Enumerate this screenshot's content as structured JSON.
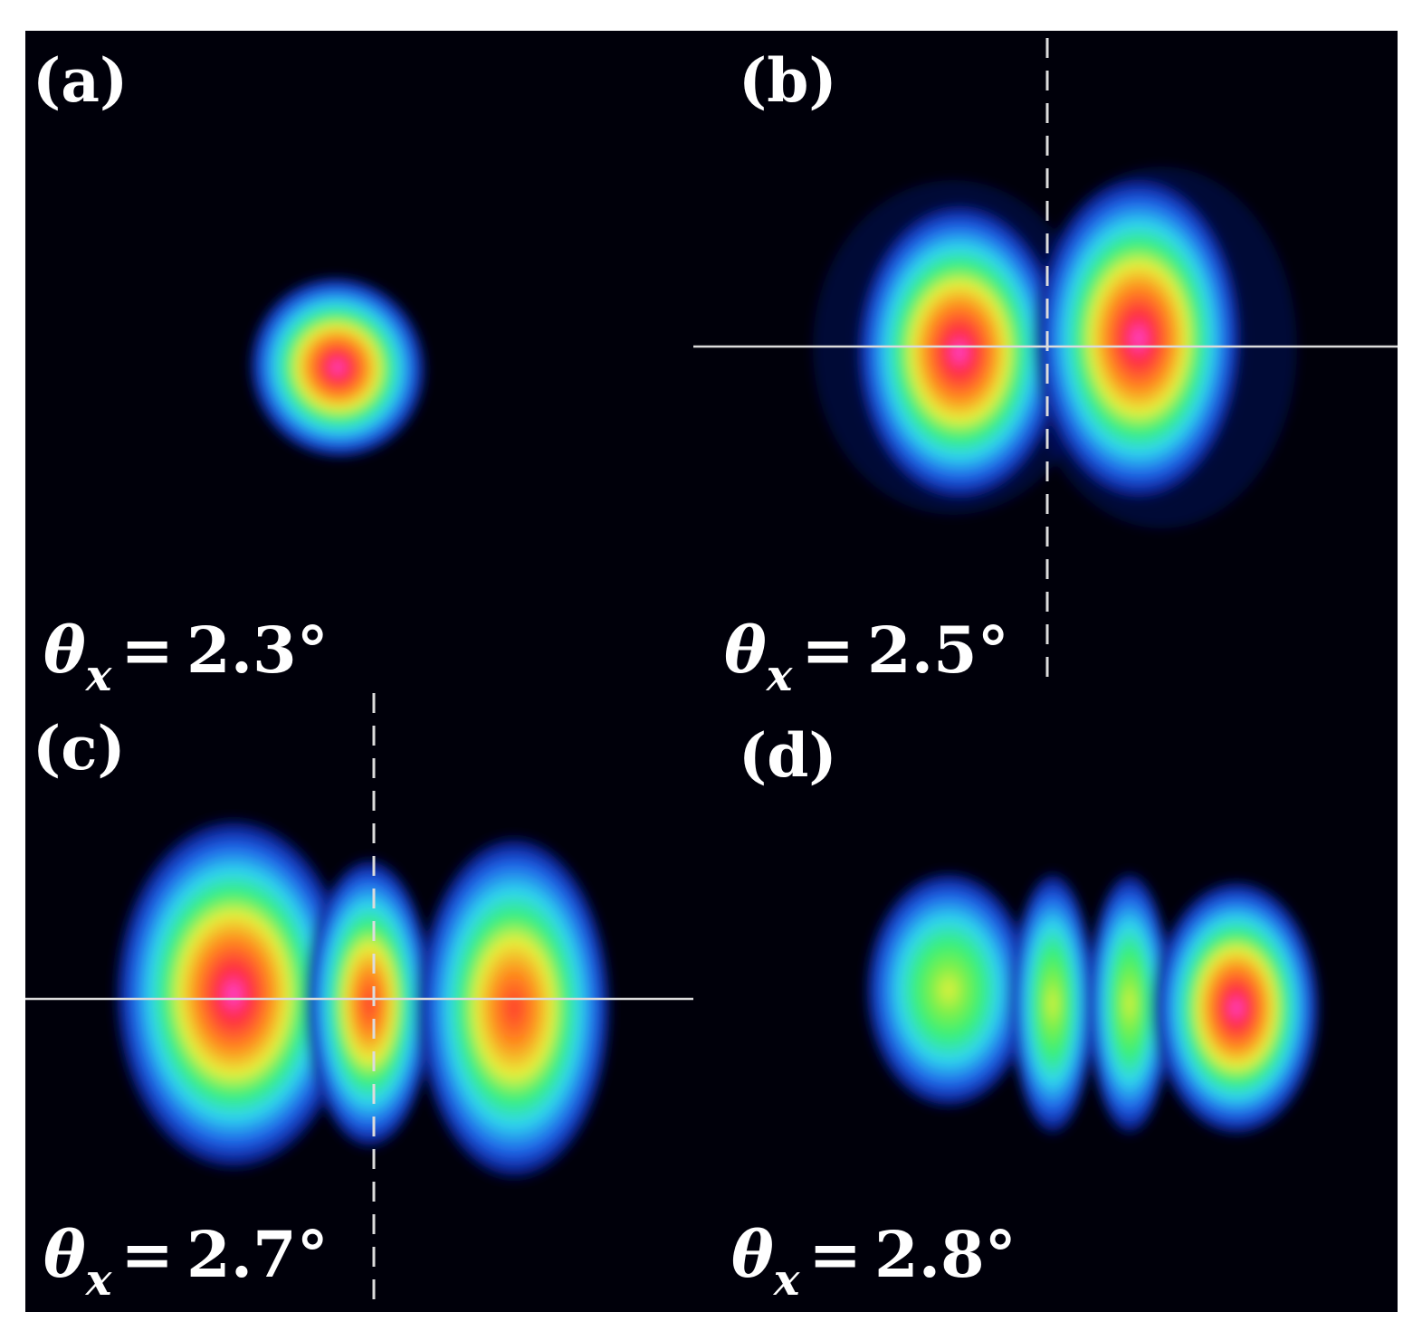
{
  "figure": {
    "panels": [
      {
        "id": "a",
        "letter": "(a)",
        "theta_symbol": "θ",
        "theta_sub": "x",
        "equals": "=",
        "theta_value": "2.3°"
      },
      {
        "id": "b",
        "letter": "(b)",
        "theta_symbol": "θ",
        "theta_sub": "x",
        "equals": "=",
        "theta_value": "2.5°"
      },
      {
        "id": "c",
        "letter": "(c)",
        "theta_symbol": "θ",
        "theta_sub": "x",
        "equals": "=",
        "theta_value": "2.7°"
      },
      {
        "id": "d",
        "letter": "(d)",
        "theta_symbol": "θ",
        "theta_sub": "x",
        "equals": "=",
        "theta_value": "2.8°"
      }
    ],
    "colors": {
      "background": "#00000a",
      "colormap": [
        "#000010",
        "#0a1a8a",
        "#1f5fe8",
        "#2fd6f0",
        "#36f07a",
        "#e6f03a",
        "#ff7a1a",
        "#ff2a3a",
        "#ff3fd6"
      ],
      "guide_lines": "#dcdcdc"
    }
  }
}
